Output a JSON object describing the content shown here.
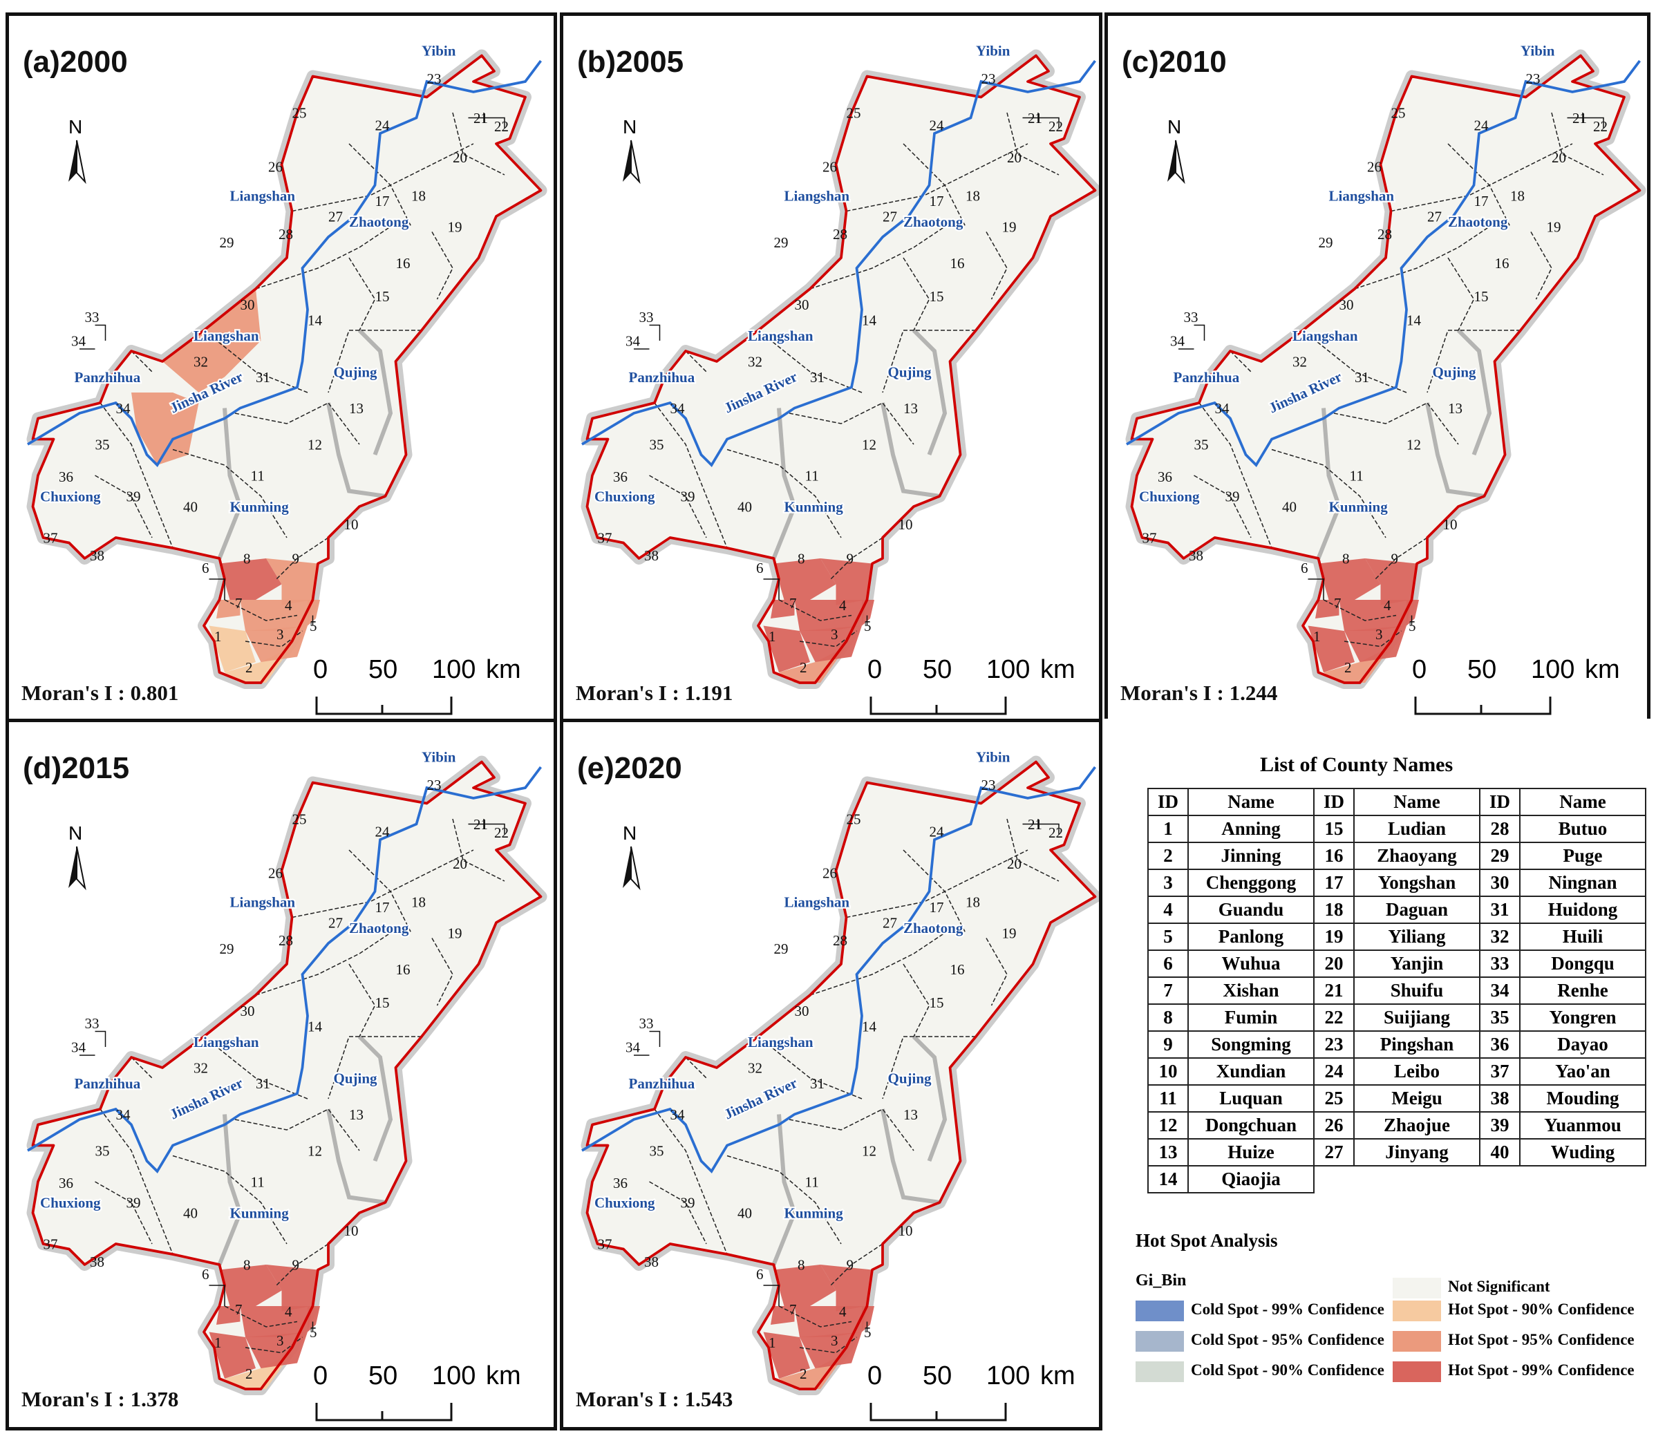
{
  "panels": [
    {
      "id": "a",
      "title": "(a)2000",
      "moran": "Moran's I : 0.801"
    },
    {
      "id": "b",
      "title": "(b)2005",
      "moran": "Moran's I : 1.191"
    },
    {
      "id": "c",
      "title": "(c)2010",
      "moran": "Moran's I : 1.244"
    },
    {
      "id": "d",
      "title": "(d)2015",
      "moran": "Moran's I : 1.378"
    },
    {
      "id": "e",
      "title": "(e)2020",
      "moran": "Moran's I : 1.543"
    }
  ],
  "north_label": "N",
  "scale_labels": [
    "0",
    "50",
    "100",
    "km"
  ],
  "region_labels": [
    "Yibin",
    "Liangshan",
    "Zhaotong",
    "Liangshan",
    "Panzhihua",
    "Jinsha River",
    "Qujing",
    "Chuxiong",
    "Kunming"
  ],
  "county_ids": [
    "1",
    "2",
    "3",
    "4",
    "5",
    "6",
    "7",
    "8",
    "9",
    "10",
    "11",
    "12",
    "13",
    "14",
    "15",
    "16",
    "17",
    "18",
    "19",
    "20",
    "21",
    "22",
    "23",
    "24",
    "25",
    "26",
    "27",
    "28",
    "29",
    "30",
    "31",
    "32",
    "33",
    "34",
    "34",
    "35",
    "36",
    "37",
    "38",
    "39",
    "40"
  ],
  "county_list": {
    "title": "List of County Names",
    "headers": [
      "ID",
      "Name",
      "ID",
      "Name",
      "ID",
      "Name"
    ],
    "rows": [
      [
        "1",
        "Anning",
        "15",
        "Ludian",
        "28",
        "Butuo"
      ],
      [
        "2",
        "Jinning",
        "16",
        "Zhaoyang",
        "29",
        "Puge"
      ],
      [
        "3",
        "Chenggong",
        "17",
        "Yongshan",
        "30",
        "Ningnan"
      ],
      [
        "4",
        "Guandu",
        "18",
        "Daguan",
        "31",
        "Huidong"
      ],
      [
        "5",
        "Panlong",
        "19",
        "Yiliang",
        "32",
        "Huili"
      ],
      [
        "6",
        "Wuhua",
        "20",
        "Yanjin",
        "33",
        "Dongqu"
      ],
      [
        "7",
        "Xishan",
        "21",
        "Shuifu",
        "34",
        "Renhe"
      ],
      [
        "8",
        "Fumin",
        "22",
        "Suijiang",
        "35",
        "Yongren"
      ],
      [
        "9",
        "Songming",
        "23",
        "Pingshan",
        "36",
        "Dayao"
      ],
      [
        "10",
        "Xundian",
        "24",
        "Leibo",
        "37",
        "Yao'an"
      ],
      [
        "11",
        "Luquan",
        "25",
        "Meigu",
        "38",
        "Mouding"
      ],
      [
        "12",
        "Dongchuan",
        "26",
        "Zhaojue",
        "39",
        "Yuanmou"
      ],
      [
        "13",
        "Huize",
        "27",
        "Jinyang",
        "40",
        "Wuding"
      ],
      [
        "14",
        "Qiaojia",
        "",
        "",
        "",
        ""
      ]
    ]
  },
  "hotspot_legend": {
    "title": "Hot Spot Analysis",
    "field": "Gi_Bin",
    "items": [
      {
        "label": "Not Significant",
        "color": "#f4f4ef"
      },
      {
        "label": "Cold Spot - 99% Confidence",
        "color": "#6f8fc9"
      },
      {
        "label": "Hot Spot - 90% Confidence",
        "color": "#f6caa0"
      },
      {
        "label": "Cold Spot - 95% Confidence",
        "color": "#a6b6cc"
      },
      {
        "label": "Hot Spot - 95% Confidence",
        "color": "#eb9a7d"
      },
      {
        "label": "Cold Spot - 90% Confidence",
        "color": "#d3dbd3"
      },
      {
        "label": "Hot Spot - 99% Confidence",
        "color": "#d9655d"
      }
    ]
  },
  "hotspot_classes": {
    "a": {
      "1": "hs90",
      "2": "hs90",
      "3": "hs95",
      "4": "hs95",
      "5": "hs95",
      "6": "hs95",
      "7": "hs95",
      "8": "hs99",
      "9": "hs95",
      "32": "hs95",
      "34": "hs95"
    },
    "b": {
      "1": "hs99",
      "2": "hs95",
      "3": "hs99",
      "4": "hs99",
      "5": "hs99",
      "6": "hs99",
      "7": "hs99",
      "8": "hs99",
      "9": "hs99"
    },
    "c": {
      "1": "hs99",
      "2": "hs95",
      "3": "hs99",
      "4": "hs99",
      "5": "hs99",
      "6": "hs99",
      "7": "hs99",
      "8": "hs99",
      "9": "hs99"
    },
    "d": {
      "1": "hs99",
      "2": "hs90",
      "3": "hs99",
      "4": "hs99",
      "5": "hs99",
      "6": "hs99",
      "7": "hs99",
      "8": "hs99",
      "9": "hs99"
    },
    "e": {
      "1": "hs99",
      "2": "hs95",
      "3": "hs99",
      "4": "hs99",
      "5": "hs99",
      "6": "hs99",
      "7": "hs99",
      "8": "hs99",
      "9": "hs99"
    }
  }
}
